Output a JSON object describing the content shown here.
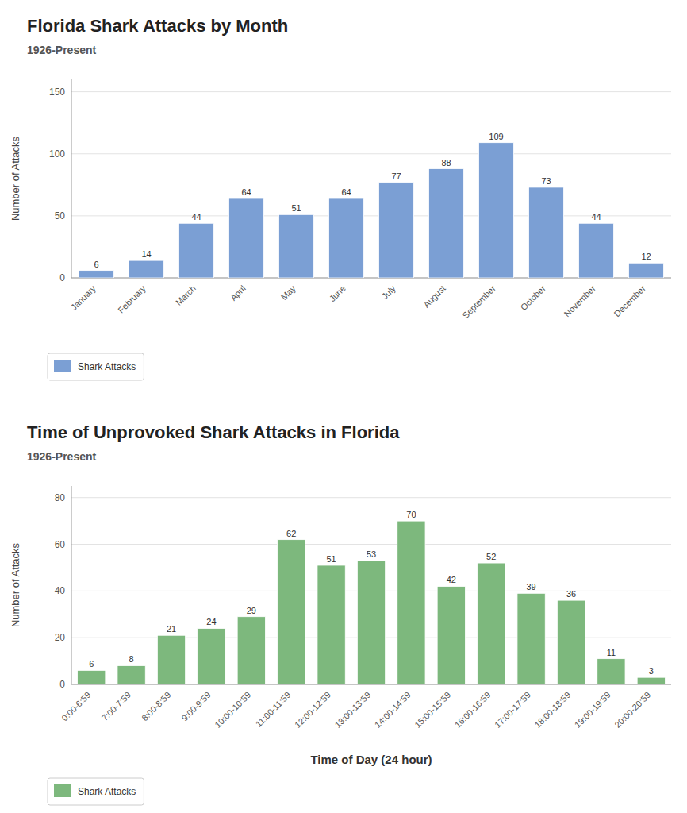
{
  "chart_data": [
    {
      "type": "bar",
      "title": "Florida Shark Attacks by Month",
      "subtitle": "1926-Present",
      "categories": [
        "January",
        "February",
        "March",
        "April",
        "May",
        "June",
        "July",
        "August",
        "September",
        "October",
        "November",
        "December"
      ],
      "series": [
        {
          "name": "Shark Attacks",
          "color": "#7B9FD4",
          "values": [
            6,
            14,
            44,
            64,
            51,
            64,
            77,
            88,
            109,
            73,
            44,
            12
          ]
        }
      ],
      "ylabel": "Number of Attacks",
      "ylim": [
        0,
        160
      ],
      "yticks": [
        0,
        50,
        100,
        150
      ],
      "grid": true,
      "data_labels": true,
      "legend": "lower left"
    },
    {
      "type": "bar",
      "title": "Time of Unprovoked Shark Attacks in Florida",
      "subtitle": "1926-Present",
      "categories": [
        "0:00-6:59",
        "7:00-7:59",
        "8:00-8:59",
        "9:00-9:59",
        "10:00-10:59",
        "11:00-11:59",
        "12:00-12:59",
        "13:00-13:59",
        "14:00-14:59",
        "15:00-15:59",
        "16:00-16:59",
        "17:00-17:59",
        "18:00-18:59",
        "19:00-19:59",
        "20:00-20:59"
      ],
      "series": [
        {
          "name": "Shark Attacks",
          "color": "#7DB87D",
          "values": [
            6,
            8,
            21,
            24,
            29,
            62,
            51,
            53,
            70,
            42,
            52,
            39,
            36,
            11,
            3
          ]
        }
      ],
      "ylabel": "Number of Attacks",
      "xlabel": "Time of Day (24 hour)",
      "ylim": [
        0,
        85
      ],
      "yticks": [
        0,
        20,
        40,
        60,
        80
      ],
      "grid": true,
      "data_labels": true,
      "legend": "lower left"
    }
  ]
}
